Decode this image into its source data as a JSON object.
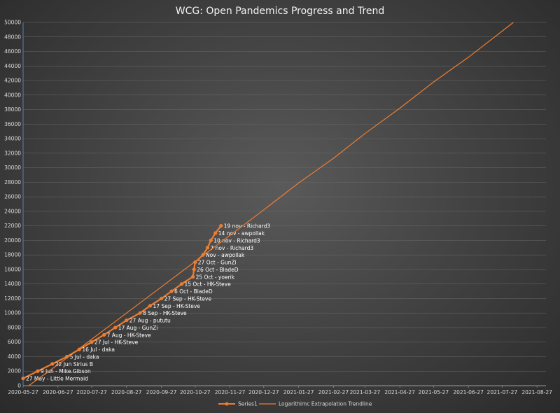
{
  "chart_data": {
    "type": "line",
    "title": "WCG: Open Pandemics Progress and Trend",
    "xlabel": "",
    "ylabel": "",
    "ylim": [
      0,
      50000
    ],
    "y_ticks": [
      0,
      2000,
      4000,
      6000,
      8000,
      10000,
      12000,
      14000,
      16000,
      18000,
      20000,
      22000,
      24000,
      26000,
      28000,
      30000,
      32000,
      34000,
      36000,
      38000,
      40000,
      42000,
      44000,
      46000,
      48000,
      50000
    ],
    "xlim": [
      "2020-05-27",
      "2021-09-04"
    ],
    "x_ticks": [
      "2020-05-27",
      "2020-06-27",
      "2020-07-27",
      "2020-08-27",
      "2020-09-27",
      "2020-10-27",
      "2020-11-27",
      "2020-12-27",
      "2021-01-27",
      "2021-02-27",
      "2021-03-27",
      "2021-04-27",
      "2021-05-27",
      "2021-06-27",
      "2021-07-27",
      "2021-08-27"
    ],
    "grid": true,
    "legend_position": "bottom",
    "series": [
      {
        "name": "Series1",
        "color": "#ED7D31",
        "points": [
          {
            "date": "2020-05-27",
            "y": 1000,
            "label": "27 May -  Little Mermaid"
          },
          {
            "date": "2020-06-09",
            "y": 2000,
            "label": "9 Jun - Mike.Gibson"
          },
          {
            "date": "2020-06-22",
            "y": 3000,
            "label": "22 Jun Sirius B"
          },
          {
            "date": "2020-07-05",
            "y": 4000,
            "label": "5 Jul - daka"
          },
          {
            "date": "2020-07-16",
            "y": 5000,
            "label": "16 Jul - daka"
          },
          {
            "date": "2020-07-27",
            "y": 6000,
            "label": "27 Jul - HK-Steve"
          },
          {
            "date": "2020-08-07",
            "y": 7000,
            "label": "7 Aug - HK-Steve"
          },
          {
            "date": "2020-08-17",
            "y": 8000,
            "label": "17 Aug - GunZi"
          },
          {
            "date": "2020-08-27",
            "y": 9000,
            "label": "27 Aug - pututu"
          },
          {
            "date": "2020-09-08",
            "y": 10000,
            "label": "8 Sep - HK-Steve"
          },
          {
            "date": "2020-09-17",
            "y": 11000,
            "label": "17 Sep - HK-Steve"
          },
          {
            "date": "2020-09-27",
            "y": 12000,
            "label": "27 Sep - HK-Steve"
          },
          {
            "date": "2020-10-06",
            "y": 13000,
            "label": "6 Oct - BladeD"
          },
          {
            "date": "2020-10-15",
            "y": 14000,
            "label": "15 Oct - HK-Steve"
          },
          {
            "date": "2020-10-25",
            "y": 15000,
            "label": "25 Oct - yoerik"
          },
          {
            "date": "2020-10-26",
            "y": 16000,
            "label": "26 Oct - BladeD"
          },
          {
            "date": "2020-10-27",
            "y": 17000,
            "label": "27 Oct - GunZi"
          },
          {
            "date": "2020-11-03",
            "y": 18000,
            "label": "Nov - awpollak"
          },
          {
            "date": "2020-11-07",
            "y": 19000,
            "label": "7 nov - Richard3"
          },
          {
            "date": "2020-11-10",
            "y": 20000,
            "label": "10 nov - Richard3"
          },
          {
            "date": "2020-11-14",
            "y": 21000,
            "label": "14 nov - awpollak"
          },
          {
            "date": "2020-11-19",
            "y": 22000,
            "label": "19 nov - Richard3"
          }
        ]
      },
      {
        "name": "Logarithimc Extrapolation Trendline",
        "color": "#ED7D31",
        "points": [
          {
            "date": "2020-06-01",
            "y": 0
          },
          {
            "date": "2020-06-27",
            "y": 2900
          },
          {
            "date": "2020-07-27",
            "y": 6400
          },
          {
            "date": "2020-08-27",
            "y": 10000
          },
          {
            "date": "2020-09-27",
            "y": 13600
          },
          {
            "date": "2020-10-27",
            "y": 17100
          },
          {
            "date": "2020-11-27",
            "y": 20700
          },
          {
            "date": "2020-12-27",
            "y": 24200
          },
          {
            "date": "2021-01-27",
            "y": 27900
          },
          {
            "date": "2021-02-27",
            "y": 31300
          },
          {
            "date": "2021-03-27",
            "y": 34700
          },
          {
            "date": "2021-04-27",
            "y": 38200
          },
          {
            "date": "2021-05-27",
            "y": 41800
          },
          {
            "date": "2021-06-27",
            "y": 45200
          },
          {
            "date": "2021-07-27",
            "y": 48800
          },
          {
            "date": "2021-08-06",
            "y": 50000
          }
        ]
      }
    ]
  }
}
